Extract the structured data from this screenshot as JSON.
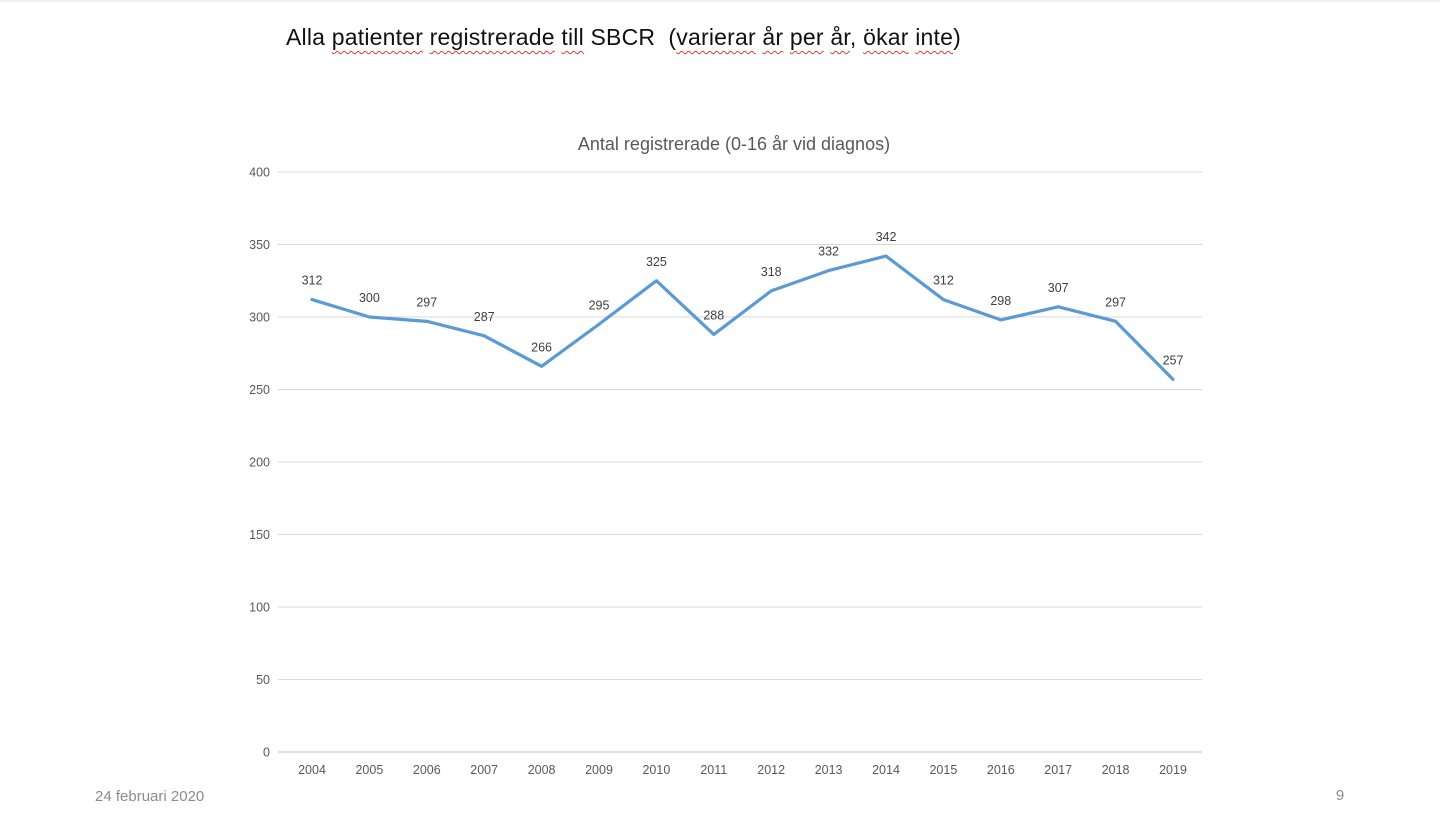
{
  "slide": {
    "title_parts": [
      {
        "text": "Alla ",
        "misspelled": false
      },
      {
        "text": "patienter",
        "misspelled": true
      },
      {
        "text": " ",
        "misspelled": false
      },
      {
        "text": "registrerade",
        "misspelled": true
      },
      {
        "text": " ",
        "misspelled": false
      },
      {
        "text": "till",
        "misspelled": true
      },
      {
        "text": " SBCR  (",
        "misspelled": false
      },
      {
        "text": "varierar",
        "misspelled": true
      },
      {
        "text": " ",
        "misspelled": false
      },
      {
        "text": "år",
        "misspelled": true
      },
      {
        "text": " ",
        "misspelled": false
      },
      {
        "text": "per",
        "misspelled": true
      },
      {
        "text": " ",
        "misspelled": false
      },
      {
        "text": "år",
        "misspelled": true
      },
      {
        "text": ", ",
        "misspelled": false
      },
      {
        "text": "ökar",
        "misspelled": true
      },
      {
        "text": " ",
        "misspelled": false
      },
      {
        "text": "inte",
        "misspelled": true
      },
      {
        "text": ")",
        "misspelled": false
      }
    ],
    "footer_date": "24 februari 2020",
    "page_number": "9"
  },
  "chart_data": {
    "type": "line",
    "title": "Antal registrerade (0-16 år vid diagnos)",
    "categories": [
      "2004",
      "2005",
      "2006",
      "2007",
      "2008",
      "2009",
      "2010",
      "2011",
      "2012",
      "2013",
      "2014",
      "2015",
      "2016",
      "2017",
      "2018",
      "2019"
    ],
    "values": [
      312,
      300,
      297,
      287,
      266,
      295,
      325,
      288,
      318,
      332,
      342,
      312,
      298,
      307,
      297,
      257
    ],
    "xlabel": "",
    "ylabel": "",
    "ylim": [
      0,
      400
    ],
    "ytick_step": 50,
    "grid": true,
    "legend": "none",
    "data_labels": "above",
    "markers": false
  },
  "colors": {
    "line": "#5B9BD5",
    "gridline": "#D9D9D9",
    "axis_line": "#BFBFBF",
    "tick_text": "#595959",
    "data_label_text": "#404040",
    "chart_title_text": "#595959",
    "slide_title_text": "#111111",
    "squiggle": "#e03c31",
    "footer_text": "#8c8c8c",
    "background": "#ffffff"
  }
}
